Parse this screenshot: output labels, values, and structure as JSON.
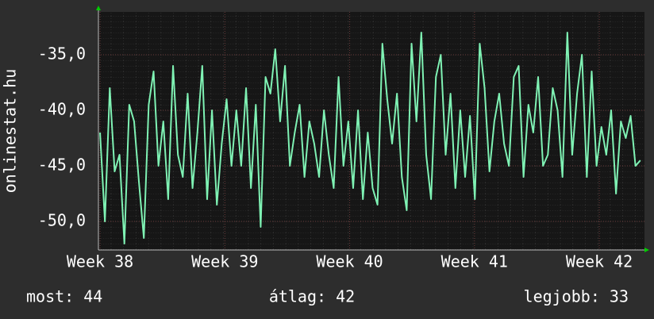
{
  "chart_data": {
    "type": "line",
    "y_label": "onlinestat.hu",
    "x": [
      38,
      38.039,
      38.078,
      38.117,
      38.156,
      38.195,
      38.234,
      38.273,
      38.312,
      38.351,
      38.39,
      38.429,
      38.468,
      38.507,
      38.546,
      38.585,
      38.624,
      38.663,
      38.702,
      38.741,
      38.78,
      38.819,
      38.858,
      38.897,
      38.936,
      38.975,
      39.014,
      39.053,
      39.092,
      39.131,
      39.17,
      39.209,
      39.248,
      39.287,
      39.326,
      39.365,
      39.404,
      39.443,
      39.482,
      39.521,
      39.56,
      39.599,
      39.638,
      39.677,
      39.716,
      39.755,
      39.794,
      39.833,
      39.872,
      39.911,
      39.95,
      39.989,
      40.028,
      40.067,
      40.106,
      40.145,
      40.184,
      40.223,
      40.262,
      40.301,
      40.34,
      40.379,
      40.418,
      40.457,
      40.496,
      40.535,
      40.574,
      40.613,
      40.652,
      40.691,
      40.73,
      40.769,
      40.808,
      40.847,
      40.886,
      40.925,
      40.964,
      41.003,
      41.042,
      41.081,
      41.12,
      41.159,
      41.198,
      41.237,
      41.276,
      41.315,
      41.354,
      41.393,
      41.432,
      41.471,
      41.51,
      41.549,
      41.588,
      41.627,
      41.666,
      41.705,
      41.744,
      41.783,
      41.822,
      41.861,
      41.9,
      41.939,
      41.978,
      42.017,
      42.056,
      42.095,
      42.134,
      42.173,
      42.212,
      42.251,
      42.29,
      42.329
    ],
    "values": [
      -42,
      -50,
      -38,
      -45.5,
      -44,
      -52,
      -39.5,
      -41,
      -46.5,
      -51.5,
      -39.5,
      -36.5,
      -45,
      -41,
      -48,
      -36,
      -44,
      -46,
      -38.5,
      -47,
      -42,
      -36,
      -48,
      -40,
      -48.5,
      -43,
      -39,
      -45,
      -40,
      -45,
      -38,
      -47,
      -39.5,
      -50.5,
      -37,
      -38.5,
      -34.5,
      -41,
      -36,
      -45,
      -42,
      -39.5,
      -46,
      -41,
      -43,
      -46,
      -40,
      -44,
      -47,
      -37,
      -45,
      -41,
      -47,
      -40,
      -48,
      -42,
      -47,
      -48.5,
      -34,
      -39,
      -43,
      -38.5,
      -46,
      -49,
      -34,
      -41,
      -33,
      -44,
      -48,
      -37,
      -35,
      -44,
      -38.5,
      -47,
      -40,
      -46,
      -40.5,
      -48,
      -34,
      -38,
      -45.5,
      -41,
      -38.5,
      -43,
      -45,
      -37,
      -36,
      -46,
      -39.5,
      -42,
      -37,
      -45,
      -44,
      -38,
      -40,
      -46,
      -33,
      -44,
      -38.5,
      -35,
      -46,
      -36.5,
      -45,
      -41.5,
      -44,
      -40,
      -47.5,
      -41,
      -42.5,
      -40.5,
      -45,
      -44.5
    ],
    "color": "#7ff2b4",
    "xlim": [
      37.987,
      42.362
    ],
    "xticks": [
      {
        "value": 38,
        "label": "Week 38"
      },
      {
        "value": 39,
        "label": "Week 39"
      },
      {
        "value": 40,
        "label": "Week 40"
      },
      {
        "value": 41,
        "label": "Week 41"
      },
      {
        "value": 42,
        "label": "Week 42"
      }
    ],
    "ylim": [
      -52.57,
      -31.14
    ],
    "yticks": [
      {
        "value": -50,
        "label": "-50,0"
      },
      {
        "value": -45,
        "label": "-45,0"
      },
      {
        "value": -40,
        "label": "-40,0"
      },
      {
        "value": -35,
        "label": "-35,0"
      }
    ],
    "grid": true,
    "stats": [
      "most: 44",
      "átlag: 42",
      "legjobb: 33"
    ]
  }
}
